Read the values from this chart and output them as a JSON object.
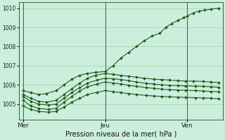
{
  "bg_color": "#cceedd",
  "grid_color": "#99cc99",
  "line_color": "#1a5c1a",
  "title": "Pression niveau de la mer( hPa )",
  "xtick_labels": [
    "Mer",
    "Jeu",
    "Ven"
  ],
  "xtick_positions": [
    0.0,
    0.42,
    0.84
  ],
  "ylim": [
    1004.2,
    1010.3
  ],
  "yticks": [
    1005,
    1006,
    1007,
    1008,
    1009,
    1010
  ],
  "series": [
    {
      "x": [
        0,
        0.04,
        0.08,
        0.12,
        0.17,
        0.21,
        0.25,
        0.29,
        0.33,
        0.37,
        0.42,
        0.46,
        0.5,
        0.54,
        0.58,
        0.62,
        0.66,
        0.7,
        0.73,
        0.76,
        0.79,
        0.82,
        0.84,
        0.87,
        0.9,
        0.93,
        0.96,
        1.0
      ],
      "y": [
        1005.7,
        1005.6,
        1005.5,
        1005.55,
        1005.7,
        1006.0,
        1006.3,
        1006.5,
        1006.6,
        1006.65,
        1006.7,
        1007.0,
        1007.4,
        1007.7,
        1008.0,
        1008.3,
        1008.55,
        1008.7,
        1009.0,
        1009.2,
        1009.35,
        1009.5,
        1009.6,
        1009.75,
        1009.85,
        1009.9,
        1009.95,
        1010.0
      ]
    },
    {
      "x": [
        0,
        0.04,
        0.08,
        0.12,
        0.17,
        0.21,
        0.25,
        0.29,
        0.33,
        0.37,
        0.42,
        0.46,
        0.5,
        0.54,
        0.58,
        0.62,
        0.67,
        0.71,
        0.75,
        0.79,
        0.83,
        0.87,
        0.92,
        0.96,
        1.0
      ],
      "y": [
        1005.5,
        1005.3,
        1005.15,
        1005.1,
        1005.2,
        1005.5,
        1005.8,
        1006.1,
        1006.35,
        1006.5,
        1006.6,
        1006.55,
        1006.5,
        1006.45,
        1006.4,
        1006.35,
        1006.3,
        1006.28,
        1006.25,
        1006.22,
        1006.2,
        1006.2,
        1006.18,
        1006.15,
        1006.12
      ]
    },
    {
      "x": [
        0,
        0.04,
        0.08,
        0.13,
        0.17,
        0.21,
        0.25,
        0.29,
        0.33,
        0.38,
        0.42,
        0.46,
        0.5,
        0.54,
        0.58,
        0.63,
        0.67,
        0.71,
        0.75,
        0.79,
        0.83,
        0.88,
        0.92,
        0.96,
        1.0
      ],
      "y": [
        1005.4,
        1005.15,
        1005.0,
        1004.95,
        1005.0,
        1005.3,
        1005.6,
        1005.85,
        1006.1,
        1006.25,
        1006.35,
        1006.32,
        1006.28,
        1006.22,
        1006.15,
        1006.08,
        1006.05,
        1006.0,
        1005.98,
        1005.96,
        1005.95,
        1005.93,
        1005.92,
        1005.9,
        1005.88
      ]
    },
    {
      "x": [
        0,
        0.04,
        0.08,
        0.13,
        0.17,
        0.21,
        0.25,
        0.29,
        0.33,
        0.38,
        0.42,
        0.46,
        0.5,
        0.54,
        0.58,
        0.63,
        0.67,
        0.71,
        0.75,
        0.79,
        0.83,
        0.88,
        0.92,
        0.96,
        1.0
      ],
      "y": [
        1005.2,
        1004.9,
        1004.78,
        1004.72,
        1004.78,
        1005.1,
        1005.4,
        1005.68,
        1005.9,
        1006.05,
        1006.15,
        1006.1,
        1006.05,
        1005.98,
        1005.92,
        1005.86,
        1005.82,
        1005.78,
        1005.75,
        1005.73,
        1005.72,
        1005.7,
        1005.68,
        1005.66,
        1005.65
      ]
    },
    {
      "x": [
        0,
        0.04,
        0.08,
        0.13,
        0.17,
        0.21,
        0.25,
        0.29,
        0.33,
        0.38,
        0.42,
        0.46,
        0.5,
        0.54,
        0.58,
        0.63,
        0.67,
        0.71,
        0.75,
        0.79,
        0.83,
        0.88,
        0.92,
        0.96,
        1.0
      ],
      "y": [
        1004.9,
        1004.72,
        1004.62,
        1004.58,
        1004.62,
        1004.85,
        1005.1,
        1005.3,
        1005.5,
        1005.62,
        1005.7,
        1005.65,
        1005.6,
        1005.55,
        1005.5,
        1005.45,
        1005.42,
        1005.4,
        1005.38,
        1005.36,
        1005.35,
        1005.33,
        1005.32,
        1005.3,
        1005.28
      ]
    }
  ],
  "marker": "D",
  "markersize": 2,
  "linewidth": 0.8
}
